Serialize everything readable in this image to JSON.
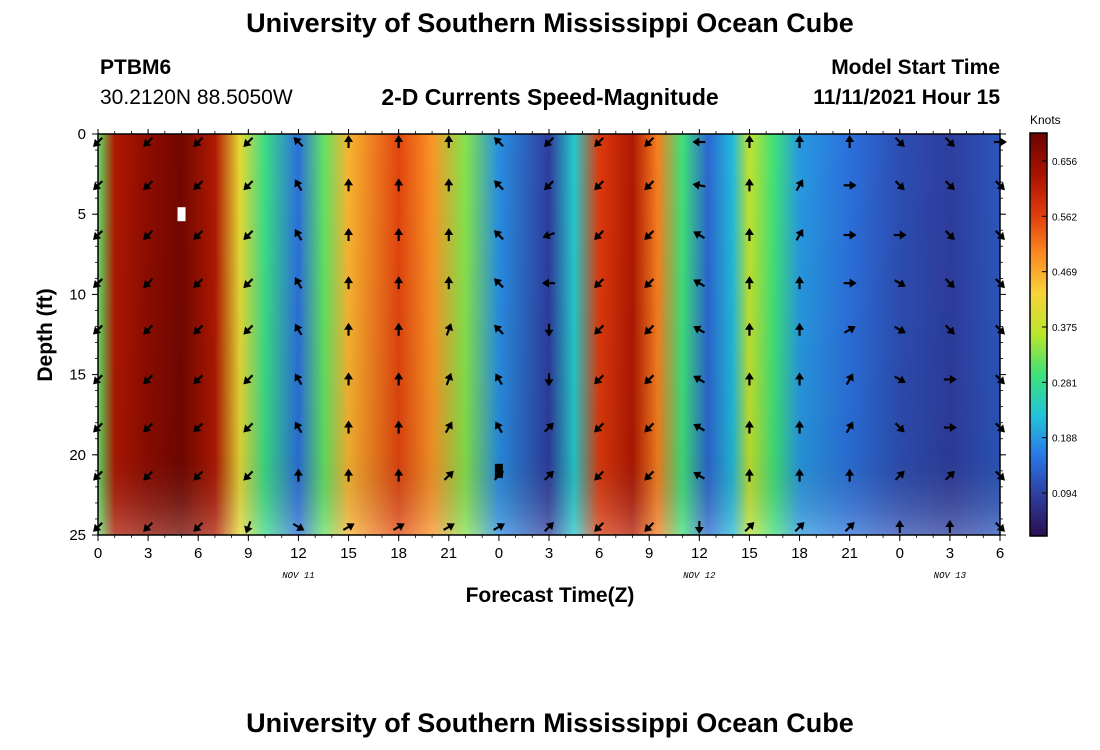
{
  "header": {
    "title": "University of Southern Mississippi Ocean Cube",
    "station": "PTBM6",
    "coords": "30.2120N  88.5050W",
    "subtitle": "2-D Currents Speed-Magnitude",
    "model_start_label": "Model Start Time",
    "model_start_value": "11/11/2021 Hour 15"
  },
  "footer": {
    "title": "University of Southern Mississippi Ocean Cube"
  },
  "colorbar": {
    "title": "Knots",
    "ticks": [
      "0.656",
      "0.562",
      "0.469",
      "0.375",
      "0.281",
      "0.188",
      "0.094"
    ],
    "colors": [
      "#2c0e52",
      "#2e3d9e",
      "#2a78e6",
      "#22c5d8",
      "#3ee07a",
      "#b8e62a",
      "#f7d43a",
      "#fb8a22",
      "#de3a0c",
      "#a81200",
      "#6a0500"
    ]
  },
  "chart_data": {
    "type": "heatmap",
    "title": "2-D Currents Speed-Magnitude",
    "xlabel": "Forecast Time(Z)",
    "ylabel": "Depth (ft)",
    "x_hours": [
      0,
      3,
      6,
      9,
      12,
      15,
      18,
      21,
      24,
      27,
      30,
      33,
      36,
      39,
      42,
      45,
      48,
      51,
      54
    ],
    "x_tick_labels": [
      "0",
      "3",
      "6",
      "9",
      "12",
      "15",
      "18",
      "21",
      "0",
      "3",
      "6",
      "9",
      "12",
      "15",
      "18",
      "21",
      "0",
      "3",
      "6"
    ],
    "date_labels": [
      {
        "hour": 12,
        "text": "NOV 11"
      },
      {
        "hour": 36,
        "text": "NOV 12"
      },
      {
        "hour": 51,
        "text": "NOV 13"
      }
    ],
    "y_ticks": [
      0,
      5,
      10,
      15,
      20,
      25
    ],
    "ylim": [
      0,
      25
    ],
    "xlim": [
      0,
      54
    ],
    "units": "Knots",
    "zlim": [
      0.0,
      0.7
    ],
    "speed_bands": [
      {
        "hour": 0,
        "speed": 0.3
      },
      {
        "hour": 1,
        "speed": 0.62
      },
      {
        "hour": 3,
        "speed": 0.66
      },
      {
        "hour": 5,
        "speed": 0.69
      },
      {
        "hour": 7,
        "speed": 0.62
      },
      {
        "hour": 8.5,
        "speed": 0.4
      },
      {
        "hour": 10,
        "speed": 0.27
      },
      {
        "hour": 12,
        "speed": 0.13
      },
      {
        "hour": 13.5,
        "speed": 0.3
      },
      {
        "hour": 15,
        "speed": 0.45
      },
      {
        "hour": 18,
        "speed": 0.55
      },
      {
        "hour": 20,
        "speed": 0.48
      },
      {
        "hour": 22,
        "speed": 0.32
      },
      {
        "hour": 24,
        "speed": 0.16
      },
      {
        "hour": 27,
        "speed": 0.07
      },
      {
        "hour": 28.5,
        "speed": 0.22
      },
      {
        "hour": 30,
        "speed": 0.56
      },
      {
        "hour": 32,
        "speed": 0.62
      },
      {
        "hour": 33.5,
        "speed": 0.5
      },
      {
        "hour": 35,
        "speed": 0.28
      },
      {
        "hour": 36.5,
        "speed": 0.12
      },
      {
        "hour": 38,
        "speed": 0.2
      },
      {
        "hour": 39,
        "speed": 0.36
      },
      {
        "hour": 40.5,
        "speed": 0.28
      },
      {
        "hour": 42,
        "speed": 0.17
      },
      {
        "hour": 45,
        "speed": 0.13
      },
      {
        "hour": 48,
        "speed": 0.09
      },
      {
        "hour": 51,
        "speed": 0.07
      },
      {
        "hour": 54,
        "speed": 0.1
      }
    ],
    "arrow_hours": [
      0,
      3,
      6,
      9,
      12,
      15,
      18,
      21,
      24,
      27,
      30,
      33,
      36,
      39,
      42,
      45,
      48,
      51,
      54
    ],
    "arrow_depths": [
      0.5,
      3.2,
      6.3,
      9.3,
      12.2,
      15.3,
      18.3,
      21.3,
      24.5
    ],
    "arrow_directions_deg": [
      [
        225,
        225,
        225,
        225,
        225,
        225,
        225,
        225,
        225
      ],
      [
        225,
        225,
        225,
        225,
        225,
        225,
        225,
        225,
        225
      ],
      [
        225,
        225,
        225,
        225,
        225,
        225,
        225,
        225,
        225
      ],
      [
        225,
        225,
        225,
        225,
        225,
        225,
        225,
        225,
        200
      ],
      [
        315,
        330,
        330,
        330,
        330,
        330,
        330,
        0,
        120
      ],
      [
        0,
        0,
        0,
        0,
        0,
        0,
        0,
        0,
        60
      ],
      [
        0,
        0,
        0,
        0,
        0,
        0,
        0,
        0,
        60
      ],
      [
        0,
        0,
        0,
        0,
        20,
        20,
        30,
        45,
        60
      ],
      [
        315,
        315,
        315,
        315,
        315,
        330,
        330,
        45,
        60
      ],
      [
        225,
        225,
        250,
        270,
        180,
        180,
        45,
        45,
        45
      ],
      [
        225,
        225,
        225,
        225,
        225,
        225,
        225,
        225,
        225
      ],
      [
        225,
        225,
        225,
        225,
        225,
        225,
        225,
        225,
        225
      ],
      [
        270,
        280,
        300,
        300,
        300,
        300,
        300,
        300,
        180
      ],
      [
        0,
        0,
        0,
        0,
        0,
        0,
        0,
        0,
        45
      ],
      [
        0,
        30,
        30,
        0,
        0,
        0,
        0,
        0,
        45
      ],
      [
        0,
        90,
        90,
        90,
        60,
        30,
        30,
        0,
        45
      ],
      [
        135,
        135,
        90,
        120,
        120,
        120,
        135,
        45,
        0
      ],
      [
        135,
        135,
        135,
        135,
        135,
        90,
        90,
        45,
        0
      ],
      [
        90,
        135,
        135,
        135,
        135,
        135,
        135,
        135,
        135
      ]
    ],
    "markers": [
      {
        "hour": 5,
        "depth": 5,
        "color": "white"
      },
      {
        "hour": 24,
        "depth": 21,
        "color": "black"
      }
    ]
  }
}
